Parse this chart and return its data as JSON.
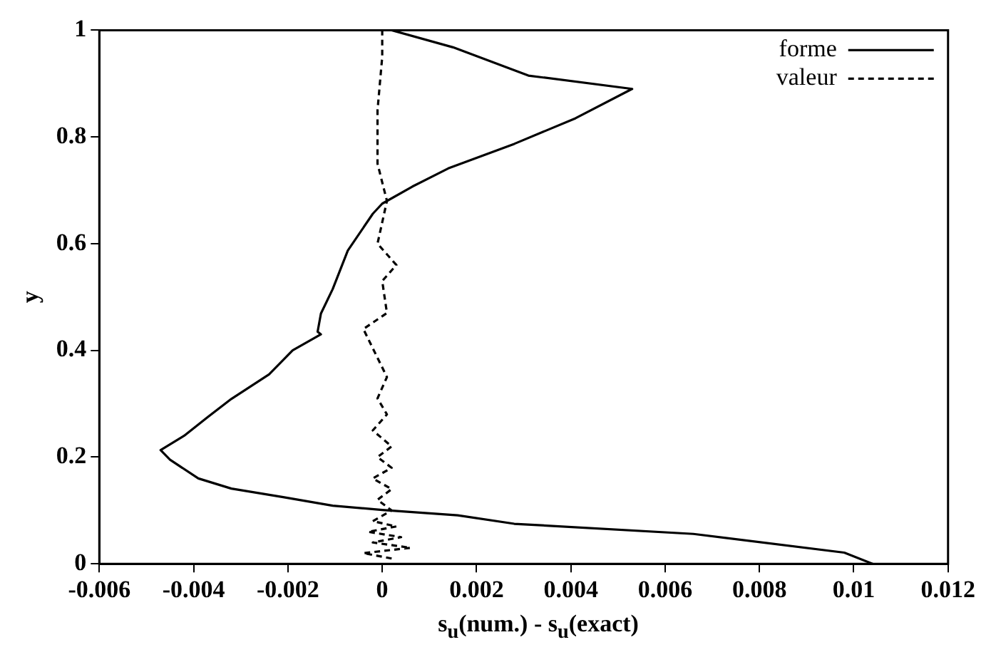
{
  "chart_data": {
    "type": "line",
    "xlabel": "s$_{u}$(num.) - s$_{u}$(exact)",
    "ylabel": "y",
    "xlim": [
      -0.006,
      0.012
    ],
    "xticks": [
      -0.006,
      -0.004,
      -0.002,
      0,
      0.002,
      0.004,
      0.006,
      0.008,
      0.01,
      0.012
    ],
    "ylim": [
      0,
      1
    ],
    "yticks": [
      0,
      0.2,
      0.4,
      0.6,
      0.8,
      1
    ],
    "grid": false,
    "legend": "top right",
    "marker": "none",
    "series": [
      {
        "name": "forme",
        "color": "#000000",
        "line_style": "solid",
        "x": [
          0.0104,
          0.0098,
          0.0066,
          0.0028,
          0.0016,
          0,
          -0.00105,
          -0.0021,
          -0.0032,
          -0.0039,
          -0.0045,
          -0.0047,
          -0.0042,
          -0.0037,
          -0.0032,
          -0.0024,
          -0.0019,
          -0.0013,
          -0.00137,
          -0.0013,
          -0.00105,
          -0.00073,
          -0.0002,
          0,
          0.00064,
          0.0014,
          0.0028,
          0.0041,
          0.0053,
          0.0031,
          0.0015,
          0.0002
        ],
        "values": [
          0,
          0.021,
          0.056,
          0.075,
          0.091,
          0.101,
          0.109,
          0.125,
          0.141,
          0.16,
          0.195,
          0.213,
          0.24,
          0.275,
          0.309,
          0.355,
          0.4,
          0.43,
          0.435,
          0.469,
          0.515,
          0.587,
          0.656,
          0.675,
          0.707,
          0.741,
          0.787,
          0.835,
          0.89,
          0.915,
          0.968,
          1
        ]
      },
      {
        "name": "valeur",
        "color": "#000000",
        "line_style": "dashed",
        "x": [
          0.0002,
          -0.0004,
          0.0006,
          -0.0002,
          0.0004,
          -0.0003,
          0.0003,
          -0.0002,
          0.0002,
          -0.0001,
          0.0002,
          -0.0002,
          0.0002,
          -0.0001,
          0.0002,
          -0.0002,
          0.0001,
          -0.0001,
          0.0001,
          -0.0004,
          0.0001,
          0,
          0.0003,
          -0.0001,
          0.0001,
          -0.0001,
          -0.0001,
          0,
          0
        ],
        "values": [
          0.01,
          0.02,
          0.03,
          0.04,
          0.05,
          0.06,
          0.07,
          0.08,
          0.1,
          0.12,
          0.14,
          0.16,
          0.18,
          0.2,
          0.22,
          0.25,
          0.28,
          0.31,
          0.35,
          0.44,
          0.47,
          0.53,
          0.56,
          0.6,
          0.68,
          0.75,
          0.85,
          0.95,
          1
        ]
      }
    ]
  }
}
